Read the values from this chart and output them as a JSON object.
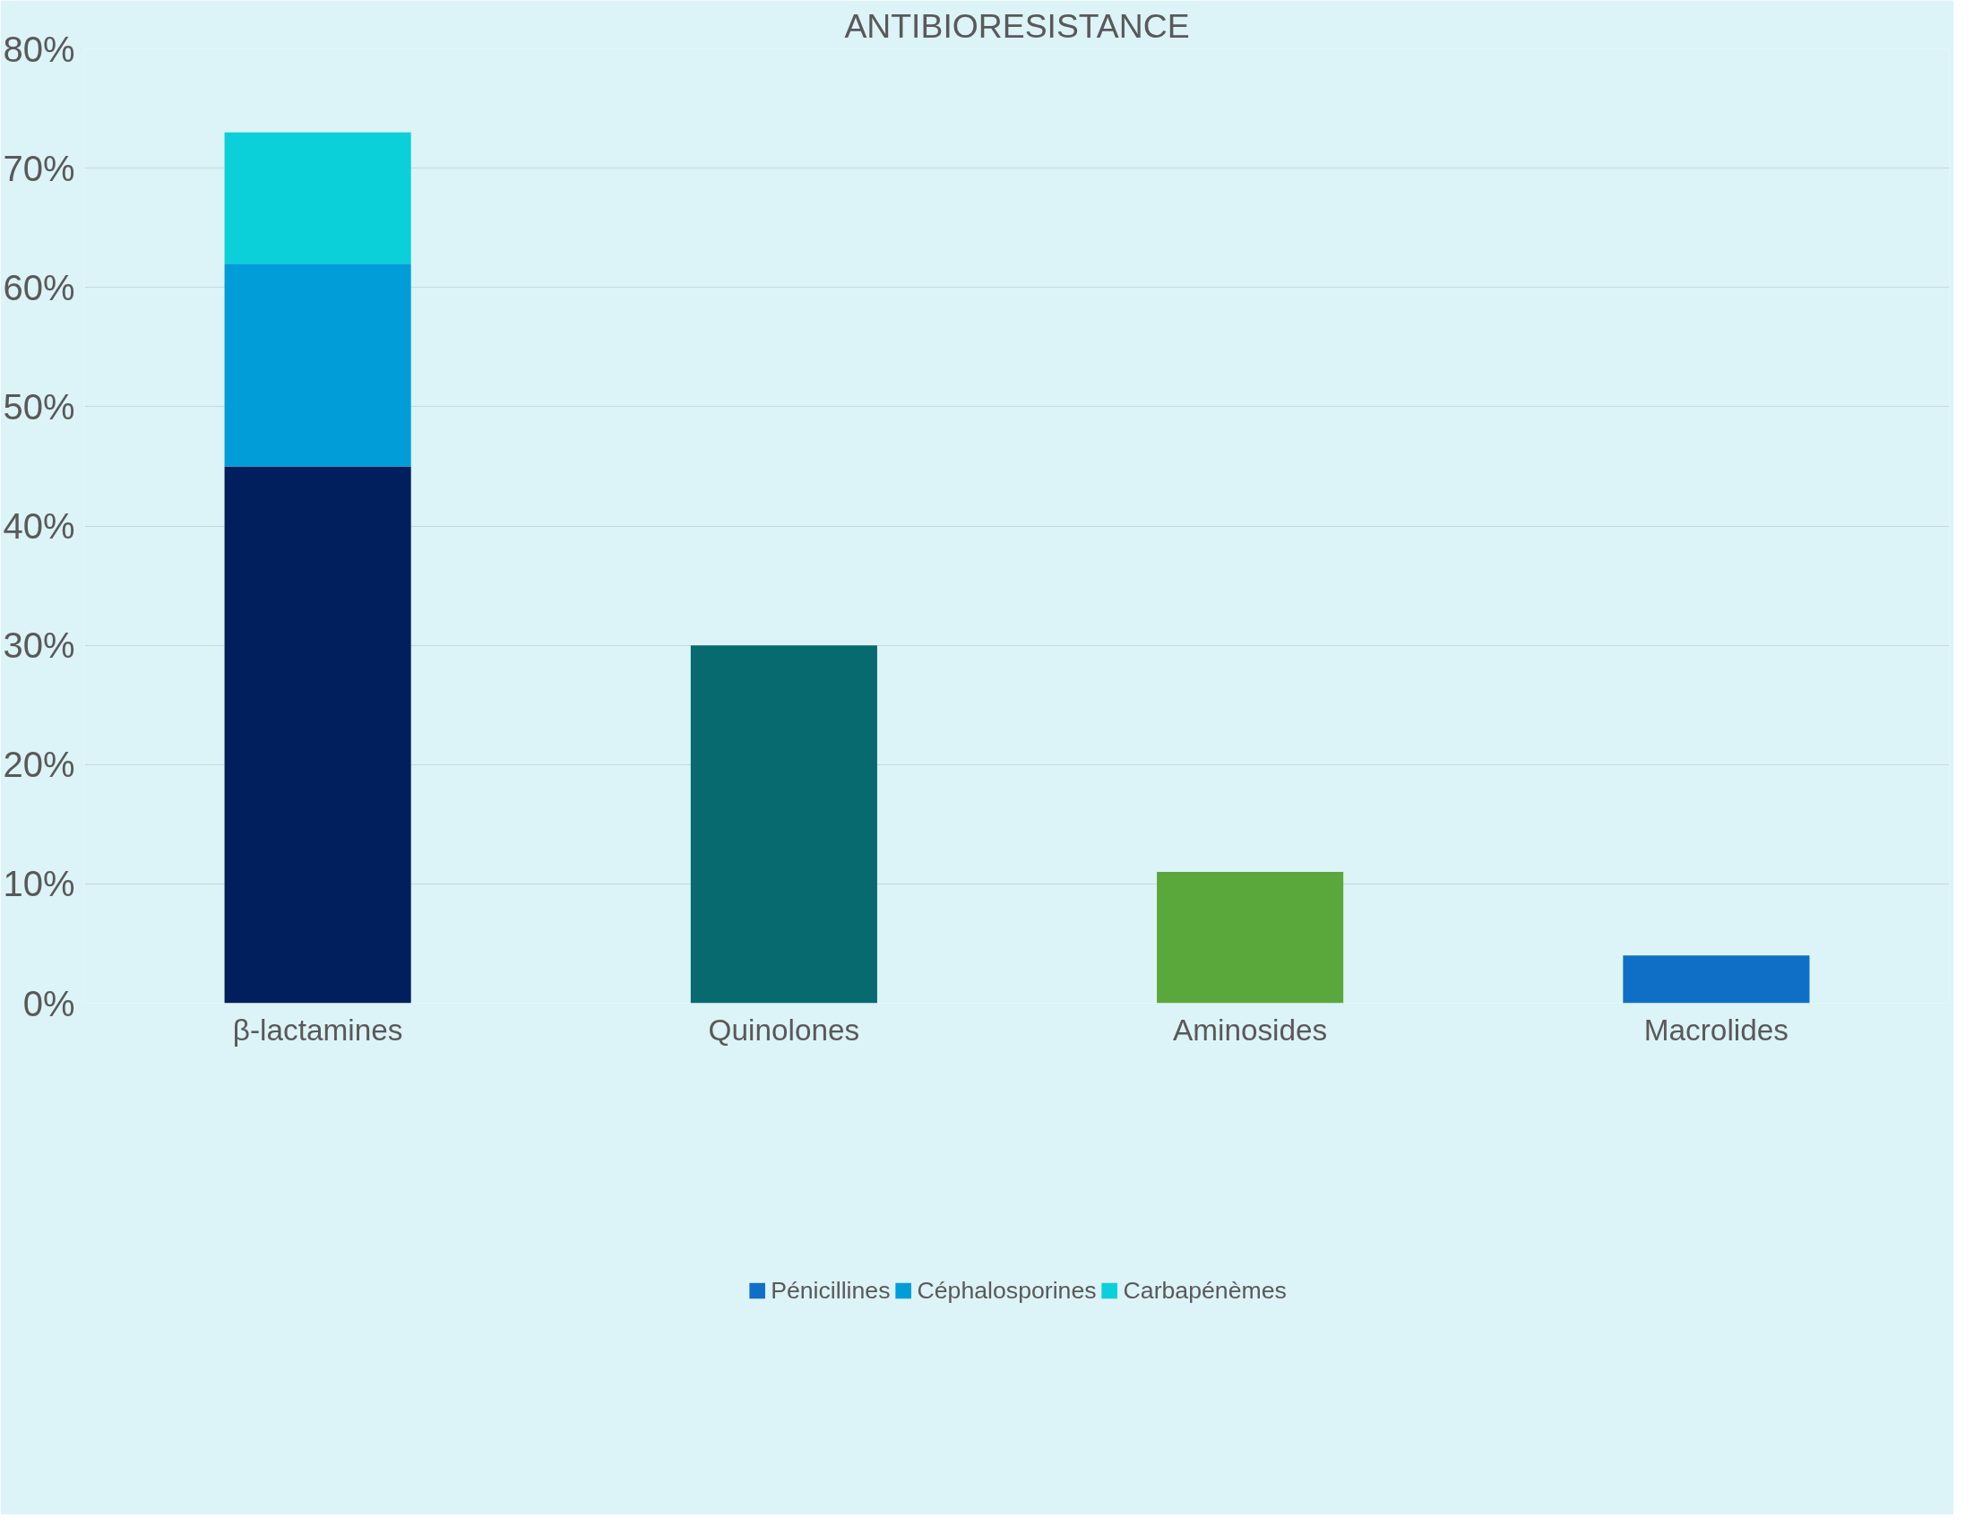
{
  "chart_data": {
    "type": "bar",
    "title": "ANTIBIORESISTANCE",
    "stacked": true,
    "categories": [
      "β-lactamines",
      "Quinolones",
      "Aminosides",
      "Macrolides"
    ],
    "series": [
      {
        "name": "Pénicillines",
        "color": "#0f6fc6",
        "colors": [
          "#001f5c",
          "#076a6e",
          "#5aa83c",
          "#0f6fc6"
        ],
        "values": [
          45,
          30,
          11,
          4
        ]
      },
      {
        "name": "Céphalosporines",
        "color": "#009dd9",
        "values": [
          17,
          null,
          null,
          null
        ]
      },
      {
        "name": "Carbapénèmes",
        "color": "#0bd0d9",
        "values": [
          11,
          null,
          null,
          null
        ]
      }
    ],
    "ylim": [
      0,
      80
    ],
    "yticks": [
      {
        "value": 0,
        "label": "0%"
      },
      {
        "value": 10,
        "label": "10%"
      },
      {
        "value": 20,
        "label": "20%"
      },
      {
        "value": 30,
        "label": "30%"
      },
      {
        "value": 40,
        "label": "40%"
      },
      {
        "value": 50,
        "label": "50%"
      },
      {
        "value": 60,
        "label": "60%"
      },
      {
        "value": 70,
        "label": "70%"
      },
      {
        "value": 80,
        "label": "80%"
      }
    ],
    "grid": "y",
    "legend": "bottom"
  }
}
